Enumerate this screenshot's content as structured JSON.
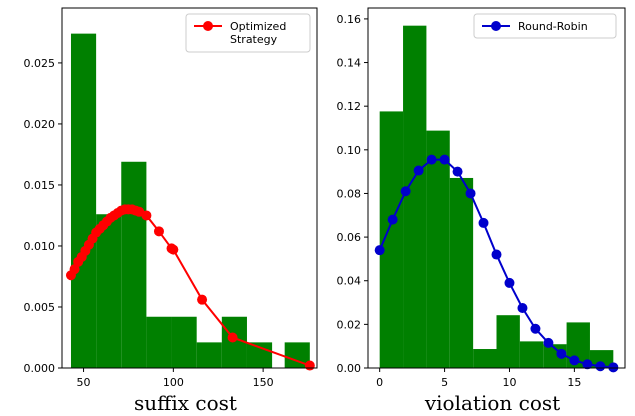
{
  "chart_data": [
    {
      "type": "bar",
      "subtype": "histogram-with-line",
      "xlabel": "suffix cost",
      "ylabel": "",
      "xlim": [
        38,
        180
      ],
      "ylim": [
        0,
        0.0295
      ],
      "xticks": [
        50,
        100,
        150
      ],
      "xtick_labels": [
        "50",
        "100",
        "150"
      ],
      "yticks": [
        0,
        0.005,
        0.01,
        0.015,
        0.02,
        0.025
      ],
      "ytick_labels": [
        "0.000",
        "0.005",
        "0.010",
        "0.015",
        "0.020",
        "0.025"
      ],
      "bar_color": "#008000",
      "bars": [
        {
          "x0": 43,
          "x1": 57,
          "value": 0.0274
        },
        {
          "x0": 57,
          "x1": 71,
          "value": 0.0126
        },
        {
          "x0": 71,
          "x1": 85,
          "value": 0.0169
        },
        {
          "x0": 85,
          "x1": 99,
          "value": 0.0042
        },
        {
          "x0": 99,
          "x1": 113,
          "value": 0.0042
        },
        {
          "x0": 113,
          "x1": 127,
          "value": 0.0021
        },
        {
          "x0": 127,
          "x1": 141,
          "value": 0.0042
        },
        {
          "x0": 141,
          "x1": 155,
          "value": 0.0021
        },
        {
          "x0": 155,
          "x1": 162,
          "value": 0.0
        },
        {
          "x0": 162,
          "x1": 176,
          "value": 0.0021
        }
      ],
      "series": [
        {
          "name": "Optimized\nStrategy",
          "color": "#ff0000",
          "x": [
            43,
            45,
            47,
            49,
            51,
            53,
            55,
            57,
            59,
            61,
            63,
            65,
            67,
            69,
            71,
            73,
            75,
            77,
            79,
            81,
            85,
            92,
            99,
            100,
            116,
            133,
            176
          ],
          "y": [
            0.0076,
            0.0081,
            0.0087,
            0.0091,
            0.0096,
            0.0101,
            0.0106,
            0.0111,
            0.0114,
            0.0117,
            0.012,
            0.0123,
            0.0125,
            0.0127,
            0.0129,
            0.013,
            0.013,
            0.013,
            0.0129,
            0.0128,
            0.0125,
            0.0112,
            0.0098,
            0.0097,
            0.0056,
            0.0025,
            0.0002
          ]
        }
      ],
      "legend_position": "top-right"
    },
    {
      "type": "bar",
      "subtype": "histogram-with-line",
      "xlabel": "violation cost",
      "ylabel": "",
      "xlim": [
        -0.9,
        18.9
      ],
      "ylim": [
        0,
        0.165
      ],
      "xticks": [
        0,
        5,
        10,
        15
      ],
      "xtick_labels": [
        "0",
        "5",
        "10",
        "15"
      ],
      "yticks": [
        0,
        0.02,
        0.04,
        0.06,
        0.08,
        0.1,
        0.12,
        0.14,
        0.16
      ],
      "ytick_labels": [
        "0.00",
        "0.02",
        "0.04",
        "0.06",
        "0.08",
        "0.10",
        "0.12",
        "0.14",
        "0.16"
      ],
      "bar_color": "#008000",
      "bars": [
        {
          "x0": 0,
          "x1": 1.8,
          "value": 0.1176
        },
        {
          "x0": 1.8,
          "x1": 3.6,
          "value": 0.1569
        },
        {
          "x0": 3.6,
          "x1": 5.4,
          "value": 0.1088
        },
        {
          "x0": 5.4,
          "x1": 7.2,
          "value": 0.0871
        },
        {
          "x0": 7.2,
          "x1": 9.0,
          "value": 0.0087
        },
        {
          "x0": 9.0,
          "x1": 10.8,
          "value": 0.0242
        },
        {
          "x0": 10.8,
          "x1": 12.6,
          "value": 0.0122
        },
        {
          "x0": 12.6,
          "x1": 14.4,
          "value": 0.0109
        },
        {
          "x0": 14.4,
          "x1": 16.2,
          "value": 0.0209
        },
        {
          "x0": 16.2,
          "x1": 18.0,
          "value": 0.0082
        }
      ],
      "series": [
        {
          "name": "Round-Robin",
          "color": "#0000cc",
          "x": [
            0,
            1,
            2,
            3,
            4,
            5,
            6,
            7,
            8,
            9,
            10,
            11,
            12,
            13,
            14,
            15,
            16,
            17,
            18
          ],
          "y": [
            0.054,
            0.068,
            0.081,
            0.0905,
            0.0955,
            0.0955,
            0.09,
            0.08,
            0.0665,
            0.052,
            0.039,
            0.0275,
            0.018,
            0.0115,
            0.0065,
            0.0035,
            0.0017,
            0.0008,
            0.0003
          ]
        }
      ],
      "legend_position": "top-right"
    }
  ]
}
